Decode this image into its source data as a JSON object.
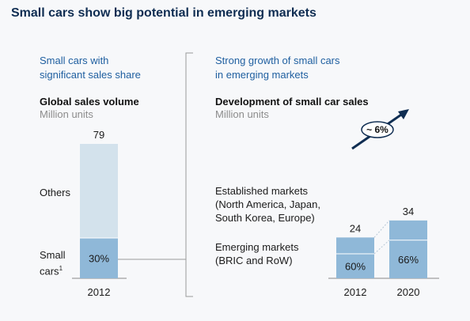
{
  "title": "Small cars show big potential in emerging markets",
  "left_panel": {
    "subtitle_line1": "Small cars with",
    "subtitle_line2": "significant sales share",
    "heading": "Global sales volume",
    "unit": "Million units",
    "label_others": "Others",
    "label_small_cars": "Small",
    "label_small_cars_2": "cars",
    "footnote_mark": "1"
  },
  "right_panel": {
    "subtitle_line1": "Strong growth of small cars",
    "subtitle_line2": "in emerging markets",
    "heading": "Development of small car sales",
    "unit": "Million units",
    "established_line1": "Established markets",
    "established_line2": "(North America, Japan,",
    "established_line3": "South Korea, Europe)",
    "emerging_line1": "Emerging markets",
    "emerging_line2": "(BRIC and RoW)",
    "growth_label": "~ 6%"
  },
  "colors": {
    "others": "#d3e2ec",
    "small_cars": "#8fb8d8",
    "bar_right": "#8fb8d8",
    "arrow": "#0f2d52"
  },
  "chart_data": [
    {
      "type": "bar",
      "stacked": true,
      "title": "Global sales volume",
      "ylabel": "Million units",
      "categories": [
        "2012"
      ],
      "total_labels": [
        "79"
      ],
      "totals": [
        79
      ],
      "series": [
        {
          "name": "Small cars",
          "share": [
            0.3
          ],
          "label": [
            "30%"
          ]
        },
        {
          "name": "Others",
          "share": [
            0.7
          ],
          "label": [
            ""
          ]
        }
      ]
    },
    {
      "type": "bar",
      "stacked": true,
      "title": "Development of small car sales",
      "ylabel": "Million units",
      "categories": [
        "2012",
        "2020"
      ],
      "total_labels": [
        "24",
        "34"
      ],
      "totals": [
        24,
        34
      ],
      "series": [
        {
          "name": "Emerging markets (BRIC and RoW)",
          "share": [
            0.6,
            0.66
          ],
          "label": [
            "60%",
            "66%"
          ]
        },
        {
          "name": "Established markets (North America, Japan, South Korea, Europe)",
          "share": [
            0.4,
            0.34
          ],
          "label": [
            "",
            ""
          ]
        }
      ],
      "annotation": "~ 6%"
    }
  ]
}
